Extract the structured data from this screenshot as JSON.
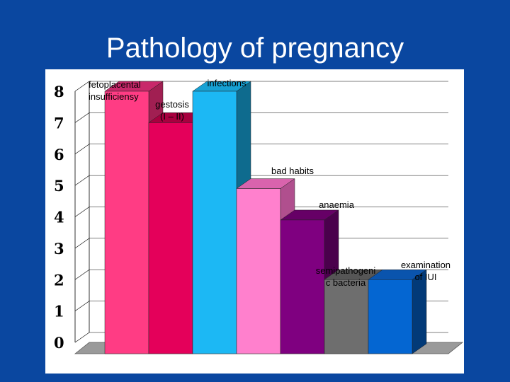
{
  "slide": {
    "title": "Pathology of pregnancy"
  },
  "chart_data": {
    "type": "bar",
    "title": "",
    "xlabel": "",
    "ylabel": "",
    "ylim": [
      0,
      8
    ],
    "yticks": [
      "0",
      "1",
      "2",
      "3",
      "4",
      "5",
      "6",
      "7",
      "8"
    ],
    "grid": true,
    "legend": "none",
    "categories": [
      [
        "fetoplacental",
        "insufficiensy"
      ],
      [
        "gestosis",
        "(I – II)"
      ],
      [
        "infections"
      ],
      [
        "bad habits"
      ],
      [
        "anaemia"
      ],
      [
        "semipathogeni",
        "c bacteria"
      ],
      [
        "examination",
        "of IUI"
      ]
    ],
    "values": [
      8,
      7,
      8,
      4.9,
      3.9,
      2,
      2
    ],
    "colors": [
      {
        "front": "#ff3c84",
        "side": "#a11f52",
        "top": "#c8286a"
      },
      {
        "front": "#e4005a",
        "side": "#8a0036",
        "top": "#a8003f"
      },
      {
        "front": "#1cb8f4",
        "side": "#0e6b8e",
        "top": "#17a1d4"
      },
      {
        "front": "#ff80cd",
        "side": "#b04f8e",
        "top": "#d963ad"
      },
      {
        "front": "#7f0080",
        "side": "#4a004c",
        "top": "#660066"
      },
      {
        "front": "#6e6e6e",
        "side": "#3f3f3f",
        "top": "#565656"
      },
      {
        "front": "#0466d2",
        "side": "#023a78",
        "top": "#0a54ad"
      }
    ],
    "floor_color": "#9a9a9a",
    "wall_line_color": "#000000"
  }
}
